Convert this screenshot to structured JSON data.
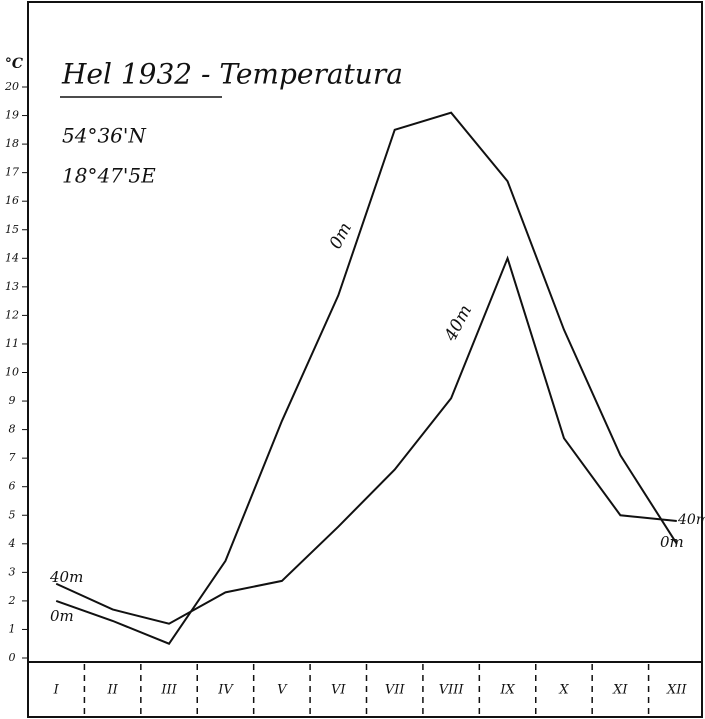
{
  "chart_data": {
    "type": "line",
    "title": "Hel 1932 - Temperatura",
    "annotations": [
      "54°36'N",
      "18°47'5E"
    ],
    "y_label": "°C",
    "categories": [
      "I",
      "II",
      "III",
      "IV",
      "V",
      "VI",
      "VII",
      "VIII",
      "IX",
      "X",
      "XI",
      "XII"
    ],
    "series": [
      {
        "name": "0m",
        "color": "#111111",
        "values": [
          2.0,
          1.3,
          0.5,
          3.4,
          8.3,
          12.7,
          18.5,
          19.1,
          16.7,
          11.5,
          7.1,
          4.0
        ]
      },
      {
        "name": "40m",
        "color": "#111111",
        "values": [
          2.6,
          1.7,
          1.2,
          2.3,
          2.7,
          4.6,
          6.6,
          9.1,
          14.0,
          7.7,
          5.0,
          4.8
        ]
      }
    ],
    "ylim": [
      0,
      20
    ],
    "yticks": [
      0,
      1,
      2,
      3,
      4,
      5,
      6,
      7,
      8,
      9,
      10,
      11,
      12,
      13,
      14,
      15,
      16,
      17,
      18,
      19,
      20
    ]
  }
}
